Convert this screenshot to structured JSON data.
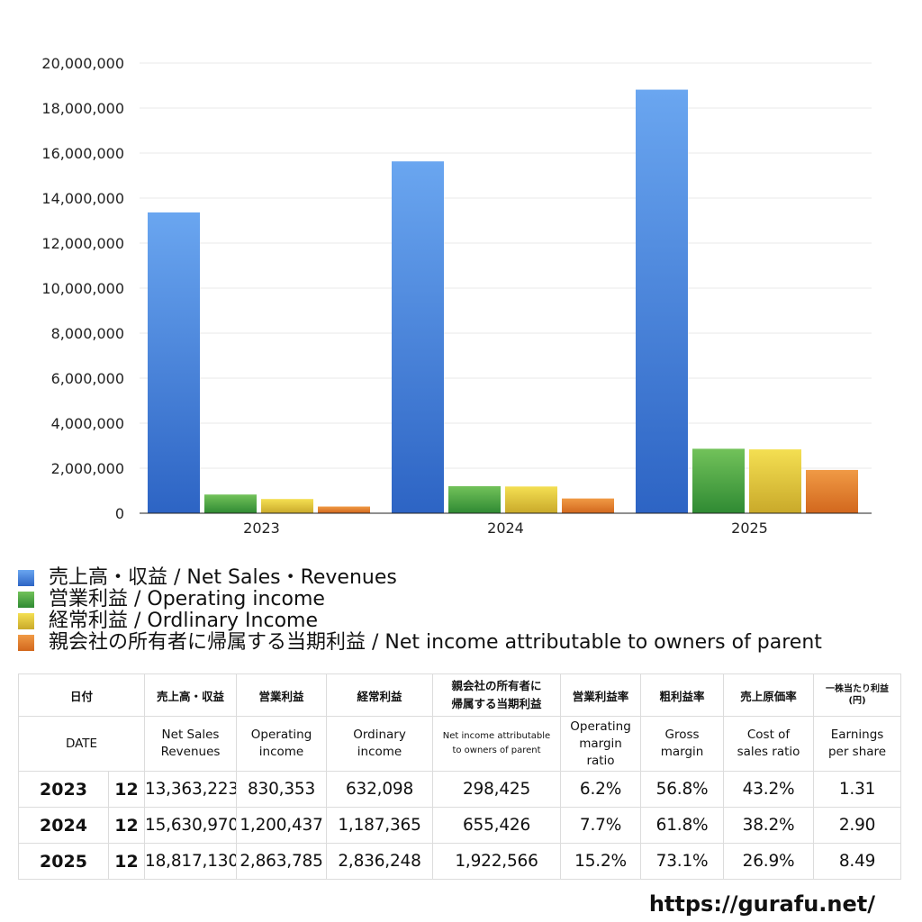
{
  "chart_data": {
    "type": "bar",
    "categories": [
      "2023",
      "2024",
      "2025"
    ],
    "ylim": [
      0,
      20000000
    ],
    "yticks": [
      "0",
      "2,000,000",
      "4,000,000",
      "6,000,000",
      "8,000,000",
      "10,000,000",
      "12,000,000",
      "14,000,000",
      "16,000,000",
      "18,000,000",
      "20,000,000"
    ],
    "ytick_values": [
      0,
      2000000,
      4000000,
      6000000,
      8000000,
      10000000,
      12000000,
      14000000,
      16000000,
      18000000,
      20000000
    ],
    "grid": true,
    "legend_position": "bottom",
    "series": [
      {
        "name": "売上高・収益 / Net Sales・Revenues",
        "color": "#4a86e0",
        "values": [
          13363223,
          15630970,
          18817130
        ]
      },
      {
        "name": "営業利益 / Operating income",
        "color": "#4aa447",
        "values": [
          830353,
          1200437,
          2863785
        ]
      },
      {
        "name": "経常利益 / Ordlinary Income",
        "color": "#e6cc3a",
        "values": [
          632098,
          1187365,
          2836248
        ]
      },
      {
        "name": "親会社の所有者に帰属する当期利益 / Net income attributable to owners of parent",
        "color": "#e27d30",
        "values": [
          298425,
          655426,
          1922566
        ]
      }
    ]
  },
  "table": {
    "jp_headers": {
      "date": "日付",
      "net_sales": "売上高・収益",
      "operating": "営業利益",
      "ordinary": "経常利益",
      "net_income_line1": "親会社の所有者に",
      "net_income_line2": "帰属する当期利益",
      "op_margin": "営業利益率",
      "gross_margin": "粗利益率",
      "cost_ratio": "売上原価率",
      "eps_line1": "一株当たり利益",
      "eps_line2": "(円)"
    },
    "en_headers": {
      "date": "DATE",
      "net_sales_line1": "Net Sales",
      "net_sales_line2": "Revenues",
      "operating_line1": "Operating",
      "operating_line2": "income",
      "ordinary_line1": "Ordinary",
      "ordinary_line2": "income",
      "net_income_line1": "Net income attributable",
      "net_income_line2": "to owners of parent",
      "op_margin_line1": "Operating",
      "op_margin_line2": "margin",
      "op_margin_line3": "ratio",
      "gross_margin_line1": "Gross",
      "gross_margin_line2": "margin",
      "cost_ratio_line1": "Cost of",
      "cost_ratio_line2": "sales ratio",
      "eps_line1": "Earnings",
      "eps_line2": "per share"
    },
    "rows": [
      {
        "year": "2023",
        "month": "12",
        "net_sales": "13,363,223",
        "operating": "830,353",
        "ordinary": "632,098",
        "net_income": "298,425",
        "op_margin": "6.2%",
        "gross_margin": "56.8%",
        "cost_ratio": "43.2%",
        "eps": "1.31"
      },
      {
        "year": "2024",
        "month": "12",
        "net_sales": "15,630,970",
        "operating": "1,200,437",
        "ordinary": "1,187,365",
        "net_income": "655,426",
        "op_margin": "7.7%",
        "gross_margin": "61.8%",
        "cost_ratio": "38.2%",
        "eps": "2.90"
      },
      {
        "year": "2025",
        "month": "12",
        "net_sales": "18,817,130",
        "operating": "2,863,785",
        "ordinary": "2,836,248",
        "net_income": "1,922,566",
        "op_margin": "15.2%",
        "gross_margin": "73.1%",
        "cost_ratio": "26.9%",
        "eps": "8.49"
      }
    ]
  },
  "footer": {
    "url": "https://gurafu.net/"
  }
}
